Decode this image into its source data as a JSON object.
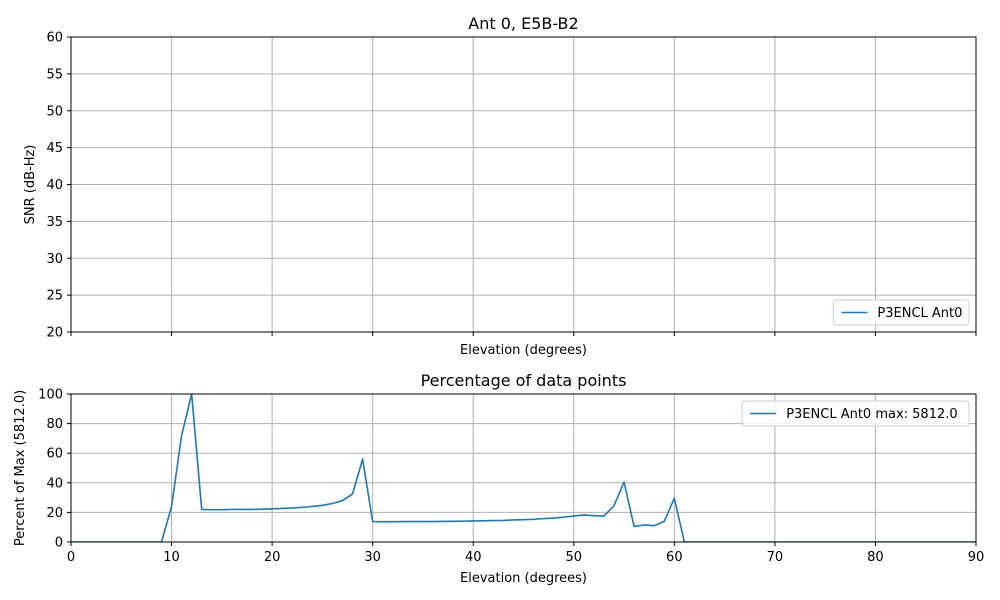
{
  "chart_data": [
    {
      "type": "line",
      "title": "Ant 0, E5B-B2",
      "xlabel": "Elevation (degrees)",
      "ylabel": "SNR (dB-Hz)",
      "xlim": [
        0,
        90
      ],
      "ylim": [
        20,
        60
      ],
      "xticks": [
        0,
        10,
        20,
        30,
        40,
        50,
        60,
        70,
        80,
        90
      ],
      "yticks": [
        20,
        25,
        30,
        35,
        40,
        45,
        50,
        55,
        60
      ],
      "show_xtick_labels": false,
      "grid": true,
      "legend_position": "bottom-right",
      "series": [
        {
          "name": "P3ENCL Ant0",
          "color": "#1f77b4",
          "x": [],
          "y": []
        }
      ]
    },
    {
      "type": "line",
      "title": "Percentage of data points",
      "xlabel": "Elevation (degrees)",
      "ylabel": "Percent of Max (5812.0)",
      "xlim": [
        0,
        90
      ],
      "ylim": [
        0,
        100
      ],
      "xticks": [
        0,
        10,
        20,
        30,
        40,
        50,
        60,
        70,
        80,
        90
      ],
      "yticks": [
        0,
        20,
        40,
        60,
        80,
        100
      ],
      "show_xtick_labels": true,
      "grid": true,
      "legend_position": "top-right",
      "series": [
        {
          "name": "P3ENCL Ant0 max: 5812.0",
          "color": "#1f77b4",
          "x": [
            0,
            1,
            2,
            3,
            4,
            5,
            6,
            7,
            8,
            9,
            10,
            11,
            12,
            13,
            14,
            15,
            16,
            17,
            18,
            19,
            20,
            21,
            22,
            23,
            24,
            25,
            26,
            27,
            28,
            29,
            30,
            31,
            32,
            33,
            34,
            35,
            36,
            37,
            38,
            39,
            40,
            41,
            42,
            43,
            44,
            45,
            46,
            47,
            48,
            49,
            50,
            51,
            52,
            53,
            54,
            55,
            56,
            57,
            58,
            59,
            60,
            61,
            62,
            70,
            80,
            90
          ],
          "y": [
            0,
            0,
            0,
            0,
            0,
            0,
            0,
            0,
            0,
            0,
            24,
            72,
            100,
            22,
            21.8,
            21.8,
            22,
            22,
            22,
            22.2,
            22.4,
            22.7,
            23,
            23.4,
            24,
            24.8,
            26,
            28,
            32.5,
            56,
            13.8,
            13.7,
            13.7,
            13.8,
            13.8,
            13.8,
            13.8,
            13.9,
            14,
            14.1,
            14.2,
            14.3,
            14.5,
            14.6,
            14.9,
            15.1,
            15.3,
            15.8,
            16.2,
            16.8,
            17.5,
            18.3,
            17.8,
            17.5,
            24.5,
            40.5,
            10.5,
            11.5,
            11,
            14,
            29.5,
            0,
            0,
            0,
            0,
            0
          ]
        }
      ]
    }
  ]
}
